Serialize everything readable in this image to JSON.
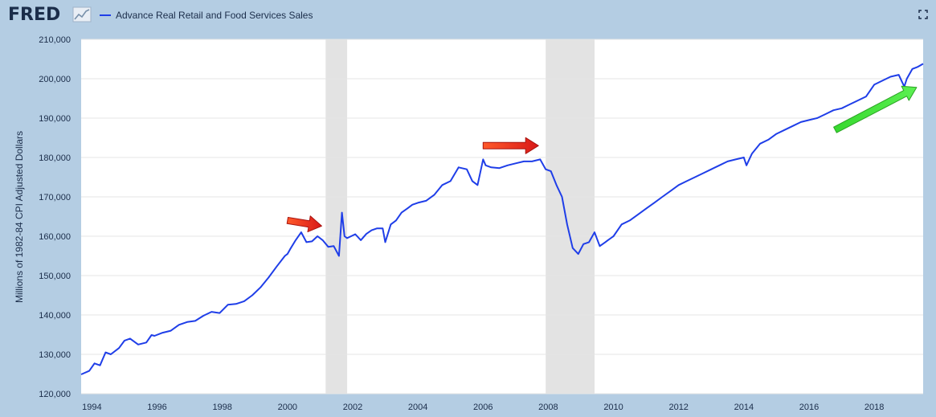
{
  "header": {
    "logo": "FRED",
    "logo_icon": "line-graph-icon",
    "fullscreen_icon": "fullscreen-icon"
  },
  "colors": {
    "series": "#1f3ee8",
    "recession": "#e3e3e3",
    "background": "#b4cde3",
    "plot_bg": "#ffffff",
    "red_arrow": "#e8281e",
    "green_arrow": "#3fe63a"
  },
  "chart_data": {
    "type": "line",
    "title": "",
    "ylabel": "Millions of 1982-84 CPI Adjusted Dollars",
    "xlabel": "",
    "ylim": [
      120000,
      210000
    ],
    "xlim": [
      1993.67,
      2019.5
    ],
    "grid": true,
    "legend": "top-left",
    "yticks": [
      120000,
      130000,
      140000,
      150000,
      160000,
      170000,
      180000,
      190000,
      200000,
      210000
    ],
    "ytick_labels": [
      "120,000",
      "130,000",
      "140,000",
      "150,000",
      "160,000",
      "170,000",
      "180,000",
      "190,000",
      "200,000",
      "210,000"
    ],
    "xticks": [
      1994,
      1996,
      1998,
      2000,
      2002,
      2004,
      2006,
      2008,
      2010,
      2012,
      2014,
      2016,
      2018
    ],
    "xtick_labels": [
      "1994",
      "1996",
      "1998",
      "2000",
      "2002",
      "2004",
      "2006",
      "2008",
      "2010",
      "2012",
      "2014",
      "2016",
      "2018"
    ],
    "recessions": [
      [
        2001.17,
        2001.83
      ],
      [
        2007.92,
        2009.42
      ]
    ],
    "annotations": [
      {
        "type": "arrow",
        "color": "red",
        "from": [
          2000.0,
          164000
        ],
        "to": [
          2001.05,
          162600
        ]
      },
      {
        "type": "arrow",
        "color": "red",
        "from": [
          2006.0,
          183000
        ],
        "to": [
          2007.7,
          183000
        ]
      },
      {
        "type": "arrow",
        "color": "green",
        "from": [
          2016.8,
          187000
        ],
        "to": [
          2019.3,
          197800
        ]
      }
    ],
    "series": [
      {
        "name": "Advance Real Retail and Food Services Sales",
        "x": [
          1993.67,
          1993.92,
          1994.08,
          1994.25,
          1994.42,
          1994.58,
          1994.83,
          1995.0,
          1995.17,
          1995.42,
          1995.67,
          1995.83,
          1995.92,
          1996.17,
          1996.42,
          1996.67,
          1996.92,
          1997.17,
          1997.42,
          1997.67,
          1997.92,
          1998.17,
          1998.42,
          1998.67,
          1998.92,
          1999.17,
          1999.42,
          1999.67,
          1999.92,
          2000.0,
          2000.08,
          2000.25,
          2000.42,
          2000.58,
          2000.75,
          2000.92,
          2001.08,
          2001.25,
          2001.42,
          2001.58,
          2001.67,
          2001.75,
          2001.83,
          2002.08,
          2002.25,
          2002.42,
          2002.58,
          2002.75,
          2002.92,
          2003.0,
          2003.17,
          2003.33,
          2003.5,
          2003.67,
          2003.83,
          2004.0,
          2004.25,
          2004.5,
          2004.75,
          2005.0,
          2005.25,
          2005.5,
          2005.67,
          2005.83,
          2006.0,
          2006.08,
          2006.25,
          2006.5,
          2006.75,
          2007.0,
          2007.25,
          2007.5,
          2007.75,
          2007.92,
          2008.08,
          2008.25,
          2008.42,
          2008.58,
          2008.75,
          2008.92,
          2009.08,
          2009.25,
          2009.42,
          2009.58,
          2009.75,
          2009.83,
          2010.0,
          2010.25,
          2010.5,
          2010.75,
          2011.0,
          2011.25,
          2011.5,
          2011.75,
          2012.0,
          2012.25,
          2012.5,
          2012.75,
          2013.0,
          2013.25,
          2013.5,
          2013.75,
          2014.0,
          2014.08,
          2014.25,
          2014.5,
          2014.75,
          2015.0,
          2015.25,
          2015.5,
          2015.75,
          2016.0,
          2016.25,
          2016.5,
          2016.75,
          2017.0,
          2017.25,
          2017.5,
          2017.75,
          2018.0,
          2018.25,
          2018.5,
          2018.75,
          2018.92,
          2019.0,
          2019.17,
          2019.33,
          2019.5
        ],
        "values": [
          124900,
          125800,
          127700,
          127200,
          130500,
          130000,
          131600,
          133500,
          134000,
          132500,
          133000,
          134900,
          134700,
          135500,
          136000,
          137500,
          138200,
          138500,
          139800,
          140800,
          140500,
          142600,
          142800,
          143500,
          145000,
          147000,
          149500,
          152300,
          155000,
          155500,
          156700,
          159000,
          161000,
          158500,
          158700,
          160000,
          159000,
          157300,
          157500,
          155000,
          166000,
          160000,
          159500,
          160500,
          159000,
          160600,
          161500,
          162000,
          162000,
          158500,
          163000,
          164000,
          166000,
          167000,
          168000,
          168500,
          169000,
          170500,
          173000,
          174000,
          177500,
          177000,
          174000,
          173000,
          179500,
          178000,
          177500,
          177300,
          178000,
          178500,
          179000,
          179000,
          179500,
          177000,
          176500,
          173000,
          170000,
          163000,
          157000,
          155500,
          158000,
          158500,
          161000,
          157500,
          158500,
          159000,
          160000,
          163000,
          164000,
          165500,
          167000,
          168500,
          170000,
          171500,
          173000,
          174000,
          175000,
          176000,
          177000,
          178000,
          179000,
          179500,
          180000,
          178000,
          181000,
          183500,
          184500,
          186000,
          187000,
          188000,
          189000,
          189500,
          190000,
          191000,
          192000,
          192500,
          193500,
          194500,
          195500,
          198500,
          199500,
          200500,
          201000,
          198000,
          200000,
          202500,
          203000,
          203800
        ]
      }
    ]
  }
}
